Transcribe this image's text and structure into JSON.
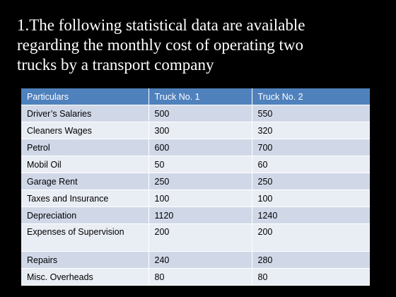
{
  "title_lines": [
    "1.The following statistical data are available",
    "regarding the monthly cost of operating two",
    "trucks by a transport company"
  ],
  "table": {
    "headers": [
      "Particulars",
      "Truck No. 1",
      "Truck No. 2"
    ],
    "rows": [
      [
        "Driver’s Salaries",
        "500",
        "550"
      ],
      [
        "Cleaners Wages",
        "300",
        "320"
      ],
      [
        "Petrol",
        "600",
        "700"
      ],
      [
        "Mobil Oil",
        "50",
        "60"
      ],
      [
        "Garage Rent",
        "250",
        "250"
      ],
      [
        "Taxes and Insurance",
        "100",
        "100"
      ],
      [
        "Depreciation",
        "1120",
        "1240"
      ],
      [
        "Expenses of Supervision",
        "200",
        "200"
      ],
      [
        "Repairs",
        "240",
        "280"
      ],
      [
        "Misc. Overheads",
        "80",
        "80"
      ]
    ]
  },
  "colors": {
    "background": "#000000",
    "title_text": "#ffffff",
    "header_fill": "#4f81bd",
    "row_fill_dark": "#d0d8e8",
    "row_fill_light": "#e9edf4"
  }
}
